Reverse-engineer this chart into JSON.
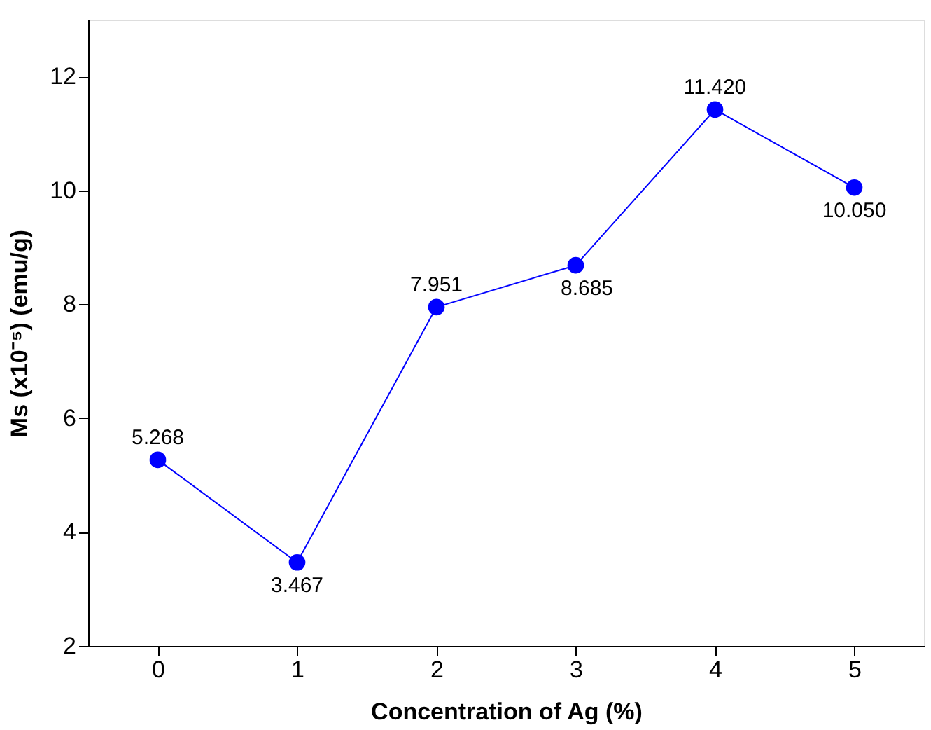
{
  "chart_data": {
    "type": "line",
    "xlabel": "Concentration of Ag (%)",
    "ylabel": "Ms (x10⁻⁵) (emu/g)",
    "x": [
      0,
      1,
      2,
      3,
      4,
      5
    ],
    "series": [
      {
        "color": "#0000ff",
        "values": [
          5.268,
          3.467,
          7.951,
          8.685,
          11.42,
          10.05
        ],
        "value_labels": [
          "5.268",
          "3.467",
          "7.951",
          "8.685",
          "11.420",
          "10.050"
        ]
      }
    ],
    "xlim": [
      -0.5,
      5.5
    ],
    "xticks": [
      0,
      1,
      2,
      3,
      4,
      5
    ],
    "ylim": [
      2,
      13
    ],
    "yticks": [
      2,
      4,
      6,
      8,
      10,
      12
    ],
    "marker": "circle",
    "line_style": "solid"
  }
}
